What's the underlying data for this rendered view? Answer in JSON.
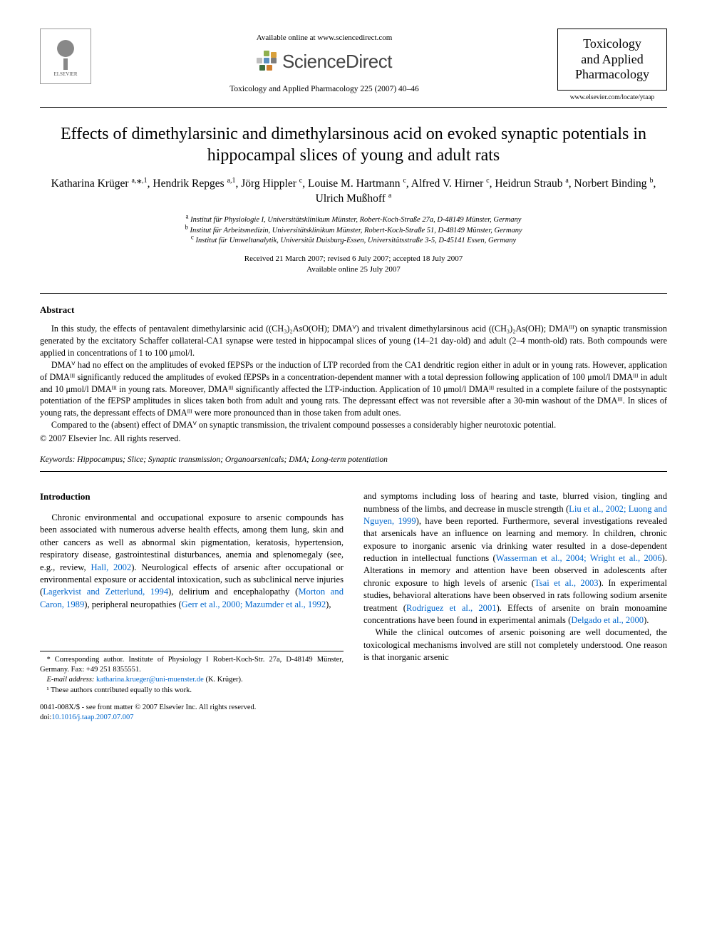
{
  "header": {
    "publisher_name": "ELSEVIER",
    "available_line": "Available online at www.sciencedirect.com",
    "sd_brand": "ScienceDirect",
    "journal_ref": "Toxicology and Applied Pharmacology 225 (2007) 40–46",
    "journal_box_line1": "Toxicology",
    "journal_box_line2": "and Applied",
    "journal_box_line3": "Pharmacology",
    "journal_url": "www.elsevier.com/locate/ytaap"
  },
  "sd_colors": {
    "c1": "#8fb04f",
    "c2": "#d9a13b",
    "c3": "#bfbfbf",
    "c4": "#5a8fbf",
    "c5": "#7d7d7d",
    "c6": "#3f6f3f",
    "c7": "#d07f2f",
    "c8": "#4a4a4a",
    "c9": "#9fcf6f"
  },
  "title": "Effects of dimethylarsinic and dimethylarsinous acid on evoked synaptic potentials in hippocampal slices of young and adult rats",
  "authors_html": "Katharina Krüger <sup>a,</sup>*<sup>,1</sup>, Hendrik Repges <sup>a,1</sup>, Jörg Hippler <sup>c</sup>, Louise M. Hartmann <sup>c</sup>, Alfred V. Hirner <sup>c</sup>, Heidrun Straub <sup>a</sup>, Norbert Binding <sup>b</sup>, Ulrich Mußhoff <sup>a</sup>",
  "affiliations": {
    "a": "Institut für Physiologie I, Universitätsklinikum Münster, Robert-Koch-Straße 27a, D-48149 Münster, Germany",
    "b": "Institut für Arbeitsmedizin, Universitätsklinikum Münster, Robert-Koch-Straße 51, D-48149 Münster, Germany",
    "c": "Institut für Umweltanalytik, Universität Duisburg-Essen, Universitätsstraße 3-5, D-45141 Essen, Germany"
  },
  "dates": {
    "received": "Received 21 March 2007; revised 6 July 2007; accepted 18 July 2007",
    "online": "Available online 25 July 2007"
  },
  "abstract": {
    "heading": "Abstract",
    "p1": "In this study, the effects of pentavalent dimethylarsinic acid ((CH₃)₂AsO(OH); DMAⱽ) and trivalent dimethylarsinous acid ((CH₃)₂As(OH); DMAᴵᴵᴵ) on synaptic transmission generated by the excitatory Schaffer collateral-CA1 synapse were tested in hippocampal slices of young (14–21 day-old) and adult (2–4 month-old) rats. Both compounds were applied in concentrations of 1 to 100 μmol/l.",
    "p2": "DMAⱽ had no effect on the amplitudes of evoked fEPSPs or the induction of LTP recorded from the CA1 dendritic region either in adult or in young rats. However, application of DMAᴵᴵᴵ significantly reduced the amplitudes of evoked fEPSPs in a concentration-dependent manner with a total depression following application of 100 μmol/l DMAᴵᴵᴵ in adult and 10 μmol/l DMAᴵᴵᴵ in young rats. Moreover, DMAᴵᴵᴵ significantly affected the LTP-induction. Application of 10 μmol/l DMAᴵᴵᴵ resulted in a complete failure of the postsynaptic potentiation of the fEPSP amplitudes in slices taken both from adult and young rats. The depressant effect was not reversible after a 30-min washout of the DMAᴵᴵᴵ. In slices of young rats, the depressant effects of DMAᴵᴵᴵ were more pronounced than in those taken from adult ones.",
    "p3": "Compared to the (absent) effect of DMAⱽ on synaptic transmission, the trivalent compound possesses a considerably higher neurotoxic potential.",
    "copyright": "© 2007 Elsevier Inc. All rights reserved."
  },
  "keywords": {
    "label": "Keywords:",
    "list": "Hippocampus; Slice; Synaptic transmission; Organoarsenicals; DMA; Long-term potentiation"
  },
  "intro": {
    "heading": "Introduction",
    "col1_p1_a": "Chronic environmental and occupational exposure to arsenic compounds has been associated with numerous adverse health effects, among them lung, skin and other cancers as well as abnormal skin pigmentation, keratosis, hypertension, respiratory disease, gastrointestinal disturbances, anemia and splenomegaly (see, e.g., review, ",
    "link_hall": "Hall, 2002",
    "col1_p1_b": "). Neurological effects of arsenic after occupational or environmental exposure or accidental intoxication, such as subclinical nerve injuries (",
    "link_lagerkvist": "Lagerkvist and Zetterlund, 1994",
    "col1_p1_c": "), delirium and encephalopathy (",
    "link_morton": "Morton and Caron, 1989",
    "col1_p1_d": "), peripheral neuropathies (",
    "link_gerr": "Gerr et al., 2000; Mazumder et al., 1992",
    "col1_p1_e": "),",
    "col2_p1_a": "and symptoms including loss of hearing and taste, blurred vision, tingling and numbness of the limbs, and decrease in muscle strength (",
    "link_liu": "Liu et al., 2002; Luong and Nguyen, 1999",
    "col2_p1_b": "), have been reported. Furthermore, several investigations revealed that arsenicals have an influence on learning and memory. In children, chronic exposure to inorganic arsenic via drinking water resulted in a dose-dependent reduction in intellectual functions (",
    "link_wasserman": "Wasserman et al., 2004; Wright et al., 2006",
    "col2_p1_c": "). Alterations in memory and attention have been observed in adolescents after chronic exposure to high levels of arsenic (",
    "link_tsai": "Tsai et al., 2003",
    "col2_p1_d": "). In experimental studies, behavioral alterations have been observed in rats following sodium arsenite treatment (",
    "link_rodriguez": "Rodriguez et al., 2001",
    "col2_p1_e": "). Effects of arsenite on brain monoamine concentrations have been found in experimental animals (",
    "link_delgado": "Delgado et al., 2000",
    "col2_p1_f": ").",
    "col2_p2": "While the clinical outcomes of arsenic poisoning are well documented, the toxicological mechanisms involved are still not completely understood. One reason is that inorganic arsenic"
  },
  "footnotes": {
    "corr": "* Corresponding author. Institute of Physiology I Robert-Koch-Str. 27a, D-48149 Münster, Germany. Fax: +49 251 8355551.",
    "email_label": "E-mail address:",
    "email": "katharina.krueger@uni-muenster.de",
    "email_tail": " (K. Krüger).",
    "contrib": "¹ These authors contributed equally to this work."
  },
  "footer": {
    "line1": "0041-008X/$ - see front matter © 2007 Elsevier Inc. All rights reserved.",
    "doi_label": "doi:",
    "doi": "10.1016/j.taap.2007.07.007"
  }
}
